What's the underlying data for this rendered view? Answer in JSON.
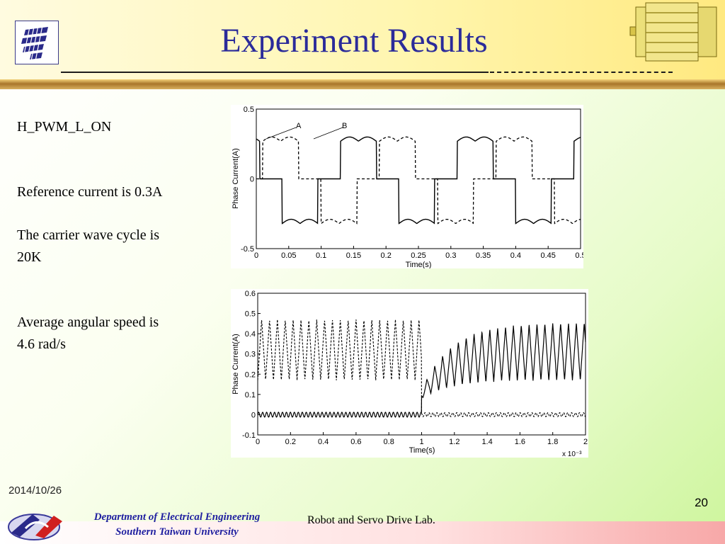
{
  "slide": {
    "title": "Experiment Results",
    "bullets": [
      "H_PWM_L_ON",
      "Reference current is 0.3A",
      "The carrier wave cycle is",
      "20K",
      "Average angular speed is",
      "4.6 rad/s"
    ],
    "date": "2014/10/26",
    "page_number": "20",
    "department_line1": "Department of Electrical Engineering",
    "department_line2": "Southern Taiwan University",
    "lab_name": "Robot and Servo Drive Lab."
  },
  "chart_data": [
    {
      "type": "line",
      "title": "",
      "xlabel": "Time(s)",
      "ylabel": "Phase Current(A)",
      "xlim": [
        0,
        0.5
      ],
      "ylim": [
        -0.5,
        0.5
      ],
      "x_ticks": [
        "0",
        "0.05",
        "0.1",
        "0.15",
        "0.2",
        "0.25",
        "0.3",
        "0.35",
        "0.4",
        "0.45",
        "0.5"
      ],
      "y_ticks": [
        "0.5",
        "0",
        "-0.5"
      ],
      "grid": false,
      "annotations": [
        "A",
        "B"
      ],
      "series": [
        {
          "style": "dashed",
          "description_points": {
            "x": [
              0.01,
              0.012,
              0.065,
              0.068,
              0.1,
              0.102,
              0.155,
              0.158,
              0.19,
              0.192,
              0.245,
              0.248,
              0.28,
              0.282,
              0.335,
              0.338,
              0.37,
              0.372,
              0.425,
              0.428,
              0.46,
              0.462,
              0.5
            ],
            "y": [
              0.0,
              0.27,
              0.27,
              0.0,
              0.0,
              -0.32,
              -0.32,
              0.0,
              0.0,
              0.27,
              0.27,
              0.0,
              0.0,
              -0.32,
              -0.32,
              0.0,
              0.0,
              0.27,
              0.27,
              0.0,
              0.0,
              -0.32,
              -0.32
            ]
          }
        },
        {
          "style": "solid",
          "description_points": {
            "x": [
              0.0,
              0.04,
              0.043,
              0.07,
              0.072,
              0.13,
              0.133,
              0.16,
              0.162,
              0.22,
              0.223,
              0.25,
              0.252,
              0.31,
              0.313,
              0.34,
              0.342,
              0.4,
              0.403,
              0.43,
              0.432,
              0.49,
              0.493,
              0.5
            ],
            "y": [
              -0.32,
              -0.32,
              0.0,
              0.0,
              0.27,
              0.27,
              0.0,
              0.0,
              -0.32,
              -0.32,
              0.0,
              0.0,
              0.27,
              0.27,
              0.0,
              0.0,
              -0.32,
              -0.32,
              0.0,
              0.0,
              0.27,
              0.27,
              0.0,
              0.0
            ]
          }
        }
      ]
    },
    {
      "type": "line",
      "title": "",
      "xlabel": "Time(s)",
      "ylabel": "Phase Current(A)",
      "x_multiplier": "x 10⁻³",
      "xlim": [
        0,
        2
      ],
      "ylim": [
        -0.1,
        0.6
      ],
      "x_ticks": [
        "0",
        "0.2",
        "0.4",
        "0.6",
        "0.8",
        "1",
        "1.2",
        "1.4",
        "1.6",
        "1.8",
        "2"
      ],
      "y_ticks": [
        "0.6",
        "0.5",
        "0.4",
        "0.3",
        "0.2",
        "0.1",
        "0",
        "-0.1"
      ],
      "grid": false,
      "series": [
        {
          "style": "dashed",
          "description": "oscillates 0.17-0.47 until x=1, then ~0"
        },
        {
          "style": "solid",
          "description": "~0 until x=1, then rises and oscillates 0.17-0.47"
        }
      ]
    }
  ]
}
